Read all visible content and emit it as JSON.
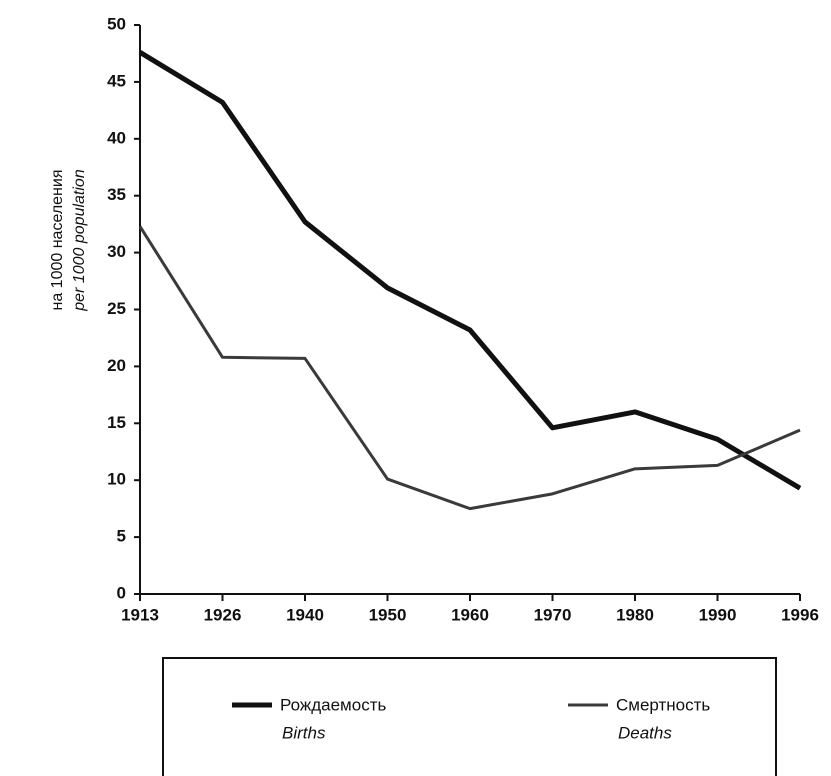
{
  "chart_data": {
    "type": "line",
    "ylabel": "на 1000 населения",
    "ylabel_en": "per 1000 population",
    "categories": [
      "1913",
      "1926",
      "1940",
      "1950",
      "1960",
      "1970",
      "1980",
      "1990",
      "1996"
    ],
    "series": [
      {
        "name": "Рождаемость",
        "name_en": "Births",
        "color": "#111111",
        "values": [
          47.6,
          43.2,
          32.7,
          26.9,
          23.2,
          14.6,
          16.0,
          13.6,
          9.3
        ]
      },
      {
        "name": "Смертность",
        "name_en": "Deaths",
        "color": "#3a3a3a",
        "values": [
          32.3,
          20.8,
          20.7,
          10.1,
          7.5,
          8.8,
          11.0,
          11.3,
          14.4
        ]
      }
    ],
    "ylim": [
      0,
      50
    ],
    "yticks": [
      0,
      5,
      10,
      15,
      20,
      25,
      30,
      35,
      40,
      45,
      50
    ]
  }
}
